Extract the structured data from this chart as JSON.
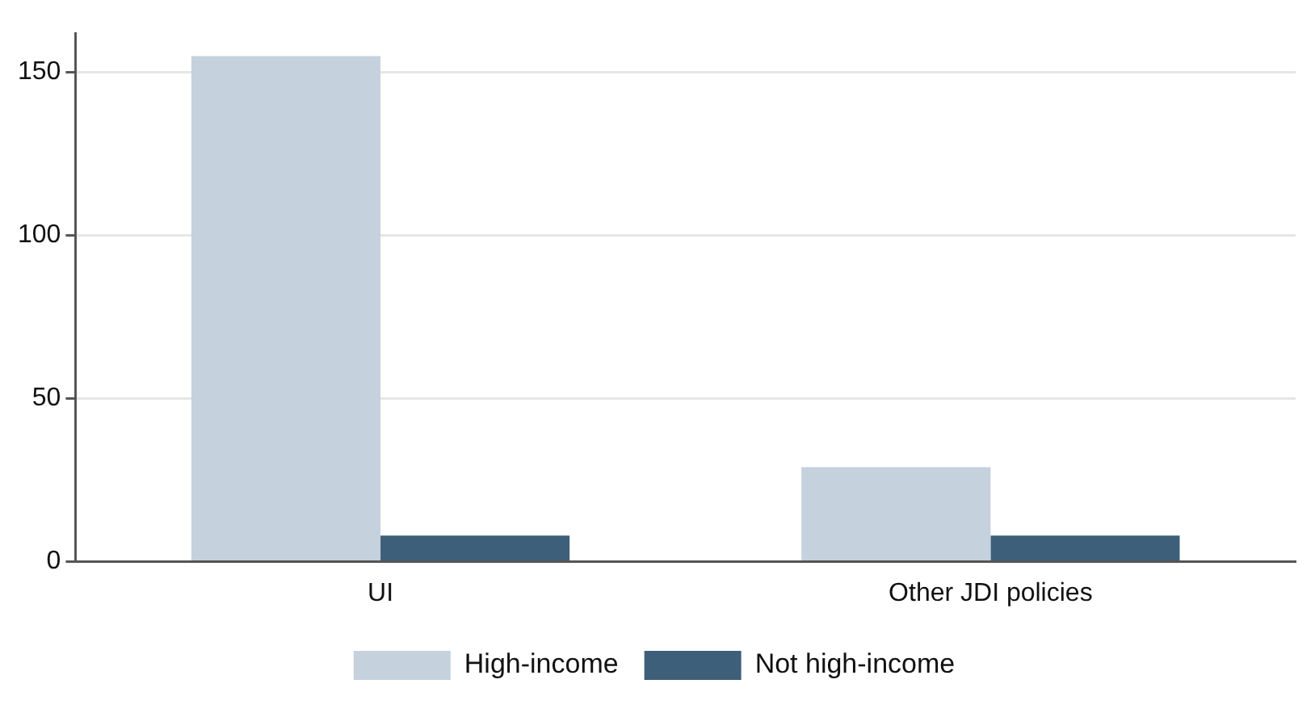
{
  "chart_data": {
    "type": "bar",
    "categories": [
      "UI",
      "Other JDI policies"
    ],
    "series": [
      {
        "name": "High-income",
        "color": "#c5d1dd",
        "values": [
          155,
          29
        ]
      },
      {
        "name": "Not high-income",
        "color": "#3e5f79",
        "values": [
          8,
          8
        ]
      }
    ],
    "ylim": [
      0,
      162
    ],
    "yticks": [
      0,
      50,
      100,
      150
    ],
    "grid": "y",
    "legend": "bottom"
  }
}
